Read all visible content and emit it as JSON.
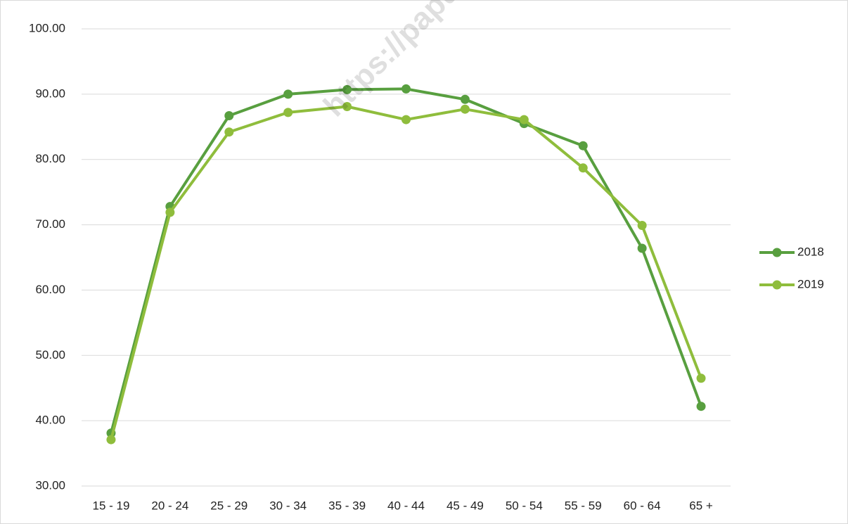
{
  "chart_data": {
    "type": "line",
    "categories": [
      "15 - 19",
      "20 - 24",
      "25 - 29",
      "30 - 34",
      "35 - 39",
      "40 - 44",
      "45 - 49",
      "50 - 54",
      "55 - 59",
      "60 - 64",
      "65 +"
    ],
    "series": [
      {
        "name": "2018",
        "color": "#589f3f",
        "values": [
          38.1,
          72.8,
          86.7,
          90.0,
          90.7,
          90.8,
          89.2,
          85.5,
          82.1,
          66.4,
          42.2
        ]
      },
      {
        "name": "2019",
        "color": "#8fbd3c",
        "values": [
          37.1,
          71.9,
          84.2,
          87.2,
          88.1,
          86.1,
          87.7,
          86.1,
          78.7,
          69.9,
          46.5
        ]
      }
    ],
    "ylim": [
      30,
      100
    ],
    "yticks": [
      {
        "value": 30,
        "label": "30.00"
      },
      {
        "value": 40,
        "label": "40.00"
      },
      {
        "value": 50,
        "label": "50.00"
      },
      {
        "value": 60,
        "label": "60.00"
      },
      {
        "value": 70,
        "label": "70.00"
      },
      {
        "value": 80,
        "label": "80.00"
      },
      {
        "value": 90,
        "label": "90.00"
      },
      {
        "value": 100,
        "label": "100.00"
      }
    ],
    "grid": true,
    "legend": "right",
    "watermark": "https://papua.k"
  }
}
